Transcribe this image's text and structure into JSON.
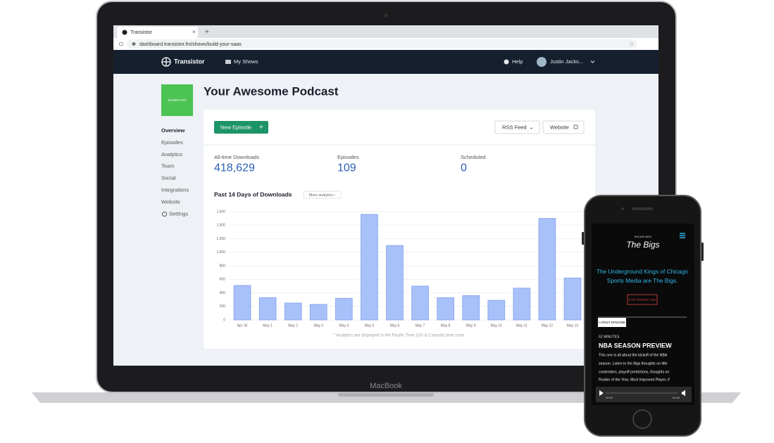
{
  "laptop": {
    "brand": "MacBook"
  },
  "browser": {
    "tab_title": "Transistor",
    "tab_close": "×",
    "new_tab": "+",
    "url": "dashboard.transistor.fm/shows/build-your-saas"
  },
  "nav": {
    "logo": "Transistor",
    "my_shows": "My Shows",
    "help": "Help",
    "user": "Justin Jacks..."
  },
  "podcast": {
    "cover_text": "SUPER FUN",
    "title": "Your Awesome Podcast"
  },
  "sidebar": [
    "Overview",
    "Episodes",
    "Analytics",
    "Team",
    "Social",
    "Integrations",
    "Website",
    "Settings"
  ],
  "buttons": {
    "new_episode": "New Episode",
    "new_episode_icon": "+",
    "rss_feed": "RSS Feed",
    "website": "Website"
  },
  "stats": [
    {
      "label": "All-time Downloads",
      "value": "418,629"
    },
    {
      "label": "Episodes",
      "value": "109"
    },
    {
      "label": "Scheduled",
      "value": "0"
    }
  ],
  "chart_data": {
    "type": "bar",
    "title": "Past 14 Days of Downloads",
    "link": "More analytics ›",
    "note": "* Analytics are displayed in the Pacific Time (US & Canada) time zone.",
    "categories": [
      "Apr 30",
      "May 1",
      "May 2",
      "May 3",
      "May 4",
      "May 5",
      "May 6",
      "May 7",
      "May 8",
      "May 9",
      "May 10",
      "May 11",
      "May 12",
      "May 13"
    ],
    "values": [
      510,
      330,
      250,
      230,
      320,
      1560,
      1100,
      500,
      330,
      360,
      290,
      470,
      1500,
      620
    ],
    "color": "#a9c1f9",
    "ylim": [
      0,
      1600
    ],
    "yticks": [
      0,
      200,
      400,
      600,
      800,
      {
        "value": 1000,
        "label": "1,000"
      },
      {
        "value": 1200,
        "label": "1,200"
      },
      {
        "value": 1400,
        "label": "1,400"
      },
      {
        "value": 1600,
        "label": "1,600"
      }
    ],
    "grid": true
  },
  "phone": {
    "logo_top": "ROCKIN' WITH",
    "logo": "The Bigs",
    "headline": [
      "The Underground Kings of Chicago",
      "Sports Media are The Bigs."
    ],
    "play_button": "PLAY EPISODE ONE",
    "latest": "LATEST EPISODE",
    "duration": "52 MINUTES",
    "episode_title": "NBA SEASON PREVIEW",
    "description": [
      "This one is all about the kickoff of the NBA",
      "season. Listen to the Bigs thoughts on title",
      "contenders, playoff predictions, thoughts on",
      "Rookie of the Year, Most Improved Player, if"
    ],
    "time_start": "00:00",
    "time_end": "00:00"
  }
}
